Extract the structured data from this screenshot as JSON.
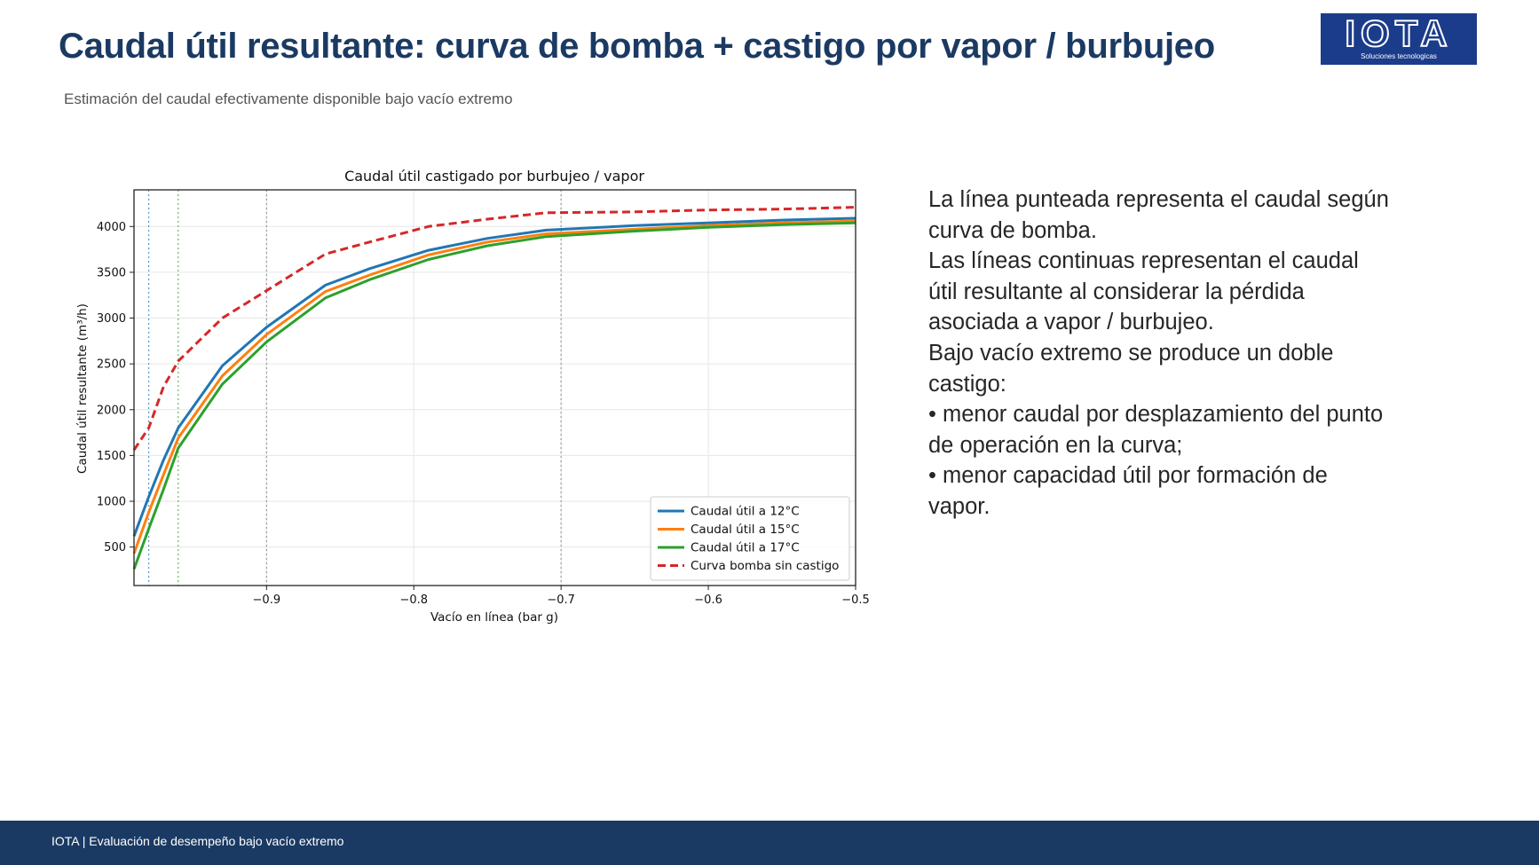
{
  "slide": {
    "title": "Caudal útil resultante: curva de bomba + castigo por vapor / burbujeo",
    "subtitle": "Estimación del caudal efectivamente disponible bajo vacío extremo",
    "footer": "IOTA | Evaluación de desempeño bajo vacío extremo"
  },
  "logo": {
    "word": "IOTA",
    "tagline": "Soluciones tecnologicas",
    "bg_color": "#1b3c8a"
  },
  "description": [
    "La línea punteada representa el caudal según curva de bomba.",
    "Las líneas continuas representan el caudal útil resultante al considerar la pérdida asociada a vapor / burbujeo.",
    "Bajo vacío extremo se produce un doble castigo:",
    "• menor caudal por desplazamiento del punto de operación en la curva;",
    "• menor capacidad útil por formación de vapor."
  ],
  "chart_data": {
    "type": "line",
    "title": "Caudal útil castigado por burbujeo / vapor",
    "xlabel": "Vacío en línea (bar g)",
    "ylabel": "Caudal útil resultante (m³/h)",
    "xlim": [
      -0.99,
      -0.5
    ],
    "ylim": [
      80,
      4400
    ],
    "x_ticks": [
      -0.9,
      -0.8,
      -0.7,
      -0.6,
      -0.5
    ],
    "x_tick_labels": [
      "−0.9",
      "−0.8",
      "−0.7",
      "−0.6",
      "−0.5"
    ],
    "y_ticks": [
      500,
      1000,
      1500,
      2000,
      2500,
      3000,
      3500,
      4000
    ],
    "y_tick_labels": [
      "500",
      "1000",
      "1500",
      "2000",
      "2500",
      "3000",
      "3500",
      "4000"
    ],
    "grid": true,
    "legend_position": "bottom-right",
    "vlines": [
      {
        "x": -0.98,
        "color": "#1f77b4"
      },
      {
        "x": -0.96,
        "color": "#2ca02c"
      },
      {
        "x": -0.9,
        "color": "#7f7f7f"
      },
      {
        "x": -0.7,
        "color": "#7f7f7f"
      }
    ],
    "x": [
      -0.99,
      -0.98,
      -0.97,
      -0.96,
      -0.93,
      -0.9,
      -0.86,
      -0.83,
      -0.79,
      -0.75,
      -0.71,
      -0.65,
      -0.6,
      -0.55,
      -0.5
    ],
    "series": [
      {
        "name": "Caudal útil a 12°C",
        "color": "#1f77b4",
        "style": "solid",
        "values": [
          620,
          1050,
          1450,
          1800,
          2480,
          2900,
          3360,
          3540,
          3740,
          3870,
          3960,
          4010,
          4040,
          4070,
          4090
        ]
      },
      {
        "name": "Caudal útil a 15°C",
        "color": "#ff7f0e",
        "style": "solid",
        "values": [
          430,
          880,
          1290,
          1690,
          2370,
          2820,
          3290,
          3470,
          3690,
          3830,
          3920,
          3970,
          4010,
          4040,
          4060
        ]
      },
      {
        "name": "Caudal útil a 17°C",
        "color": "#2ca02c",
        "style": "solid",
        "values": [
          260,
          700,
          1130,
          1580,
          2280,
          2740,
          3220,
          3420,
          3640,
          3790,
          3890,
          3950,
          3990,
          4020,
          4040
        ]
      },
      {
        "name": "Curva bomba sin castigo",
        "color": "#d62728",
        "style": "dashed",
        "values": [
          1560,
          1800,
          2250,
          2530,
          3000,
          3300,
          3700,
          3830,
          4000,
          4080,
          4150,
          4160,
          4180,
          4190,
          4210
        ]
      }
    ]
  }
}
